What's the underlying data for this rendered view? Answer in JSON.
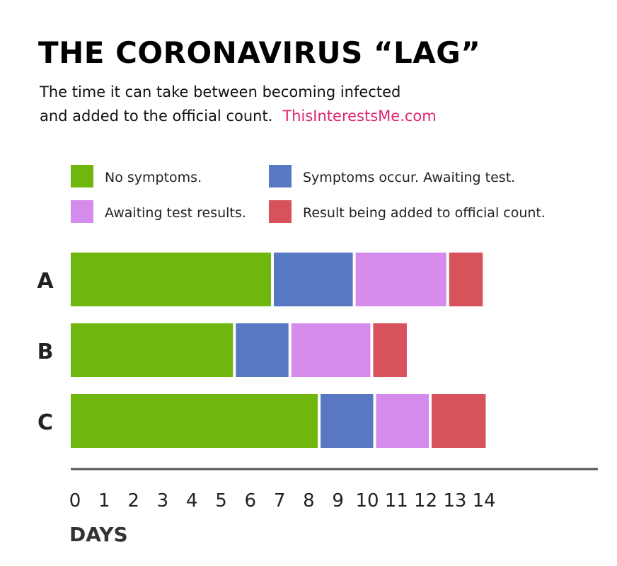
{
  "header": {
    "title": "THE CORONAVIRUS “LAG”",
    "subtitle_line1": "The time it can take between becoming infected",
    "subtitle_line2": "and added to the official count.",
    "brand": "ThisInterestsMe.com"
  },
  "colors": {
    "no_symptoms": "#6fb70f",
    "awaiting_test": "#5878c3",
    "awaiting_results": "#d48bec",
    "added_to_count": "#d8525b",
    "axis": "#555555"
  },
  "chart_data": {
    "type": "bar",
    "orientation": "horizontal",
    "stacked": true,
    "title": "THE CORONAVIRUS “LAG”",
    "xlabel": "DAYS",
    "ylabel": "",
    "xlim": [
      0,
      14
    ],
    "x_ticks": [
      "0",
      "1",
      "2",
      "3",
      "4",
      "5",
      "6",
      "7",
      "8",
      "9",
      "10",
      "11",
      "12",
      "13",
      "14"
    ],
    "categories": [
      "A",
      "B",
      "C"
    ],
    "legend_position": "top",
    "grid": false,
    "series": [
      {
        "name": "No symptoms.",
        "color_key": "no_symptoms",
        "values": [
          6.9,
          5.6,
          8.5
        ]
      },
      {
        "name": "Symptoms occur. Awaiting test.",
        "color_key": "awaiting_test",
        "values": [
          2.8,
          1.9,
          1.9
        ]
      },
      {
        "name": "Awaiting test results.",
        "color_key": "awaiting_results",
        "values": [
          3.2,
          2.8,
          1.9
        ]
      },
      {
        "name": "Result being added to official count.",
        "color_key": "added_to_count",
        "values": [
          1.2,
          1.2,
          1.9
        ]
      }
    ]
  }
}
